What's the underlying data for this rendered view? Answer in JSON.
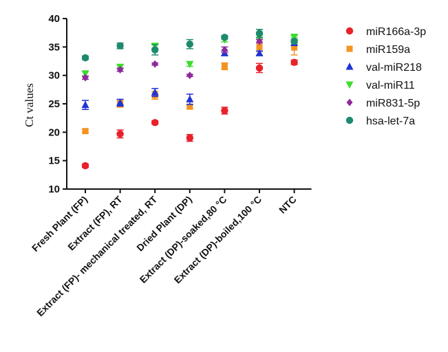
{
  "chart_data": {
    "type": "scatter",
    "ylabel": "Ct values",
    "xlabel": "",
    "ylim": [
      10,
      40
    ],
    "yticks": [
      10,
      15,
      20,
      25,
      30,
      35,
      40
    ],
    "categories": [
      "Fresh Plant (FP)",
      "Extract (FP), RT",
      "Extract (FP)- mechanical treated, RT",
      "Dried Plant (DP)",
      "Extract (DP)-soaked,80 °C",
      "Extract (DP)-boiled,100 °C",
      "NTC"
    ],
    "legend_position": "right",
    "series": [
      {
        "name": "miR166a-3p",
        "marker": "circle",
        "color": "#e8212b",
        "values": [
          14.1,
          19.7,
          21.7,
          19.0,
          23.8,
          31.3,
          32.3
        ],
        "errors": [
          0.3,
          0.7,
          0.3,
          0.6,
          0.6,
          0.8,
          0.4
        ]
      },
      {
        "name": "miR159a",
        "marker": "square",
        "color": "#f39320",
        "values": [
          20.2,
          25.0,
          26.5,
          24.5,
          31.6,
          35.0,
          34.9
        ],
        "errors": [
          0.3,
          0.6,
          0.7,
          0.4,
          0.6,
          0.8,
          1.3
        ]
      },
      {
        "name": "val-miR218",
        "marker": "triangle-up",
        "color": "#1f33d6",
        "values": [
          24.8,
          25.2,
          27.0,
          25.8,
          33.9,
          33.9,
          35.7
        ],
        "errors": [
          0.8,
          0.6,
          0.7,
          0.9,
          0.4,
          0.4,
          0.4
        ]
      },
      {
        "name": "val-miR11",
        "marker": "triangle-down",
        "color": "#3ddc2e",
        "values": [
          30.3,
          31.5,
          35.2,
          32.0,
          36.3,
          36.8,
          36.8
        ],
        "errors": [
          0.5,
          0.3,
          0.4,
          0.4,
          0.4,
          0.3,
          0.2
        ]
      },
      {
        "name": "miR831-5p",
        "marker": "diamond",
        "color": "#8e2a9c",
        "values": [
          29.6,
          31.0,
          32.0,
          30.0,
          34.5,
          36.0,
          36.0
        ],
        "errors": [
          0.3,
          0.3,
          0.2,
          0.2,
          0.5,
          0.3,
          0.3
        ]
      },
      {
        "name": "hsa-let-7a",
        "marker": "circle",
        "color": "#1d8a6d",
        "values": [
          33.1,
          35.2,
          34.5,
          35.5,
          36.7,
          37.4,
          36.0
        ],
        "errors": [
          0.3,
          0.5,
          0.9,
          0.8,
          0.3,
          0.7,
          0.3
        ]
      }
    ]
  }
}
